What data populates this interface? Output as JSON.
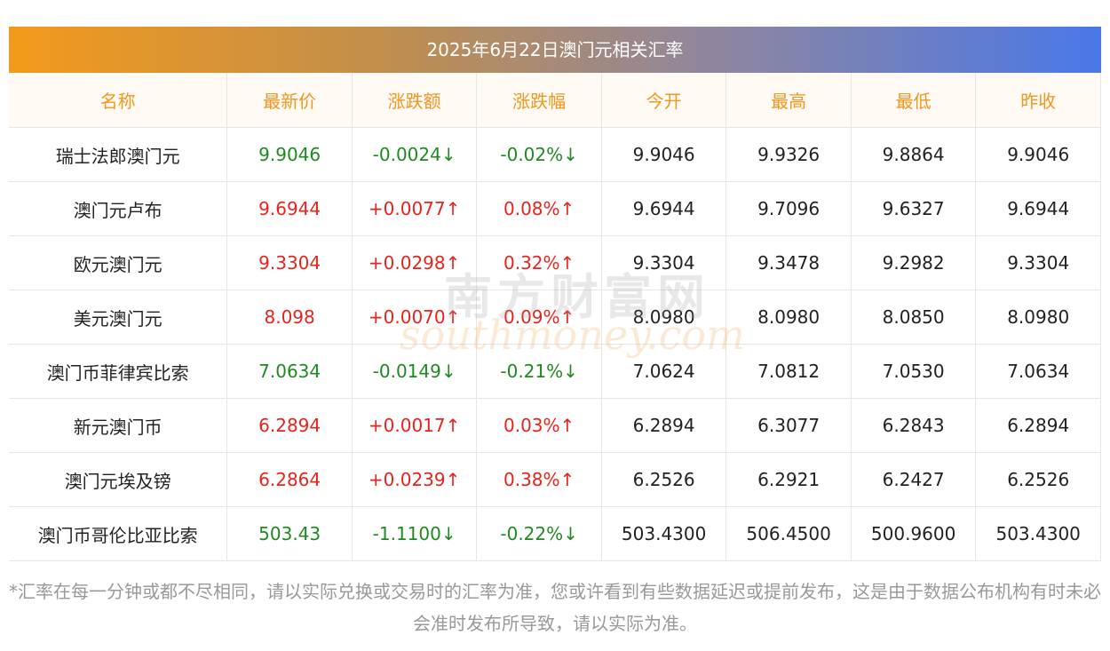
{
  "title": "2025年6月22日澳门元相关汇率",
  "headers": [
    "名称",
    "最新价",
    "涨跌额",
    "涨跌幅",
    "今开",
    "最高",
    "最低",
    "昨收"
  ],
  "rows": [
    {
      "name": "瑞士法郎澳门元",
      "latest": "9.9046",
      "change": "-0.0024↓",
      "pct": "-0.02%↓",
      "open": "9.9046",
      "high": "9.9326",
      "low": "9.8864",
      "prev": "9.9046",
      "dir": "down"
    },
    {
      "name": "澳门元卢布",
      "latest": "9.6944",
      "change": "+0.0077↑",
      "pct": "0.08%↑",
      "open": "9.6944",
      "high": "9.7096",
      "low": "9.6327",
      "prev": "9.6944",
      "dir": "up"
    },
    {
      "name": "欧元澳门元",
      "latest": "9.3304",
      "change": "+0.0298↑",
      "pct": "0.32%↑",
      "open": "9.3304",
      "high": "9.3478",
      "low": "9.2982",
      "prev": "9.3304",
      "dir": "up"
    },
    {
      "name": "美元澳门元",
      "latest": "8.098",
      "change": "+0.0070↑",
      "pct": "0.09%↑",
      "open": "8.0980",
      "high": "8.0980",
      "low": "8.0850",
      "prev": "8.0980",
      "dir": "up"
    },
    {
      "name": "澳门币菲律宾比索",
      "latest": "7.0634",
      "change": "-0.0149↓",
      "pct": "-0.21%↓",
      "open": "7.0624",
      "high": "7.0812",
      "low": "7.0530",
      "prev": "7.0634",
      "dir": "down"
    },
    {
      "name": "新元澳门币",
      "latest": "6.2894",
      "change": "+0.0017↑",
      "pct": "0.03%↑",
      "open": "6.2894",
      "high": "6.3077",
      "low": "6.2843",
      "prev": "6.2894",
      "dir": "up"
    },
    {
      "name": "澳门元埃及镑",
      "latest": "6.2864",
      "change": "+0.0239↑",
      "pct": "0.38%↑",
      "open": "6.2526",
      "high": "6.2921",
      "low": "6.2427",
      "prev": "6.2526",
      "dir": "up"
    },
    {
      "name": "澳门币哥伦比亚比索",
      "latest": "503.43",
      "change": "-1.1100↓",
      "pct": "-0.22%↓",
      "open": "503.4300",
      "high": "506.4500",
      "low": "500.9600",
      "prev": "503.4300",
      "dir": "down"
    }
  ],
  "note": "*汇率在每一分钟或都不尽相同，请以实际兑换或交易时的汇率为准，您或许看到有些数据延迟或提前发布，这是由于数据公布机构有时未必会准时发布所导致，请以实际为准。",
  "watermark": {
    "cn": "南方财富网",
    "en": "southmoney.com"
  },
  "colors": {
    "up": "#e8231c",
    "down": "#1f8a1f",
    "header_text": "#f2961e"
  }
}
